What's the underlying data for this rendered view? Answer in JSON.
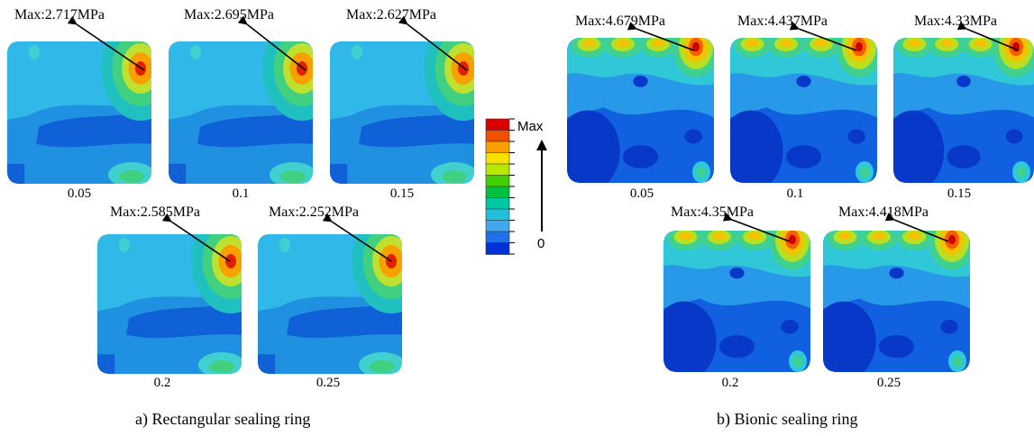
{
  "panels": [
    {
      "id": "rect",
      "title": "a) Rectangular sealing ring",
      "cells": [
        {
          "max": "Max:2.717MPa",
          "label": "0.05"
        },
        {
          "max": "Max:2.695MPa",
          "label": "0.1"
        },
        {
          "max": "Max:2.627MPa",
          "label": "0.15"
        },
        {
          "max": "Max:2.585MPa",
          "label": "0.2"
        },
        {
          "max": "Max:2.252MPa",
          "label": "0.25"
        }
      ]
    },
    {
      "id": "bionic",
      "title": "b) Bionic sealing ring",
      "cells": [
        {
          "max": "Max:4.679MPa",
          "label": "0.05"
        },
        {
          "max": "Max:4.437MPa",
          "label": "0.1"
        },
        {
          "max": "Max:4.33MPa",
          "label": "0.15"
        },
        {
          "max": "Max:4.35MPa",
          "label": "0.2"
        },
        {
          "max": "Max:4.418MPa",
          "label": "0.25"
        }
      ]
    }
  ],
  "legend": {
    "max_label": "Max",
    "min_label": "0",
    "colors": [
      "#dd0000",
      "#f05000",
      "#f8a000",
      "#f8e000",
      "#b8e800",
      "#40d000",
      "#00c040",
      "#00c8a0",
      "#20c0d8",
      "#40a8f0",
      "#2070e8",
      "#0030d8"
    ]
  },
  "fills": {
    "rect_base": "#2090e0",
    "rect_dark": "#1060d8",
    "rect_mid": "#30b8e8",
    "rect_cyan": "#40d0d0",
    "rect_hot": [
      "#20c0c0",
      "#40d080",
      "#c0e030",
      "#f8a000",
      "#e02000"
    ],
    "bionic_base": "#1060e0",
    "bionic_deep": "#0838c8",
    "bionic_light": "#2898e8",
    "bionic_cyan": "#30c8d8",
    "bionic_hot": [
      "#40d090",
      "#b8e020",
      "#f8c000",
      "#f06000",
      "#d00000"
    ]
  }
}
